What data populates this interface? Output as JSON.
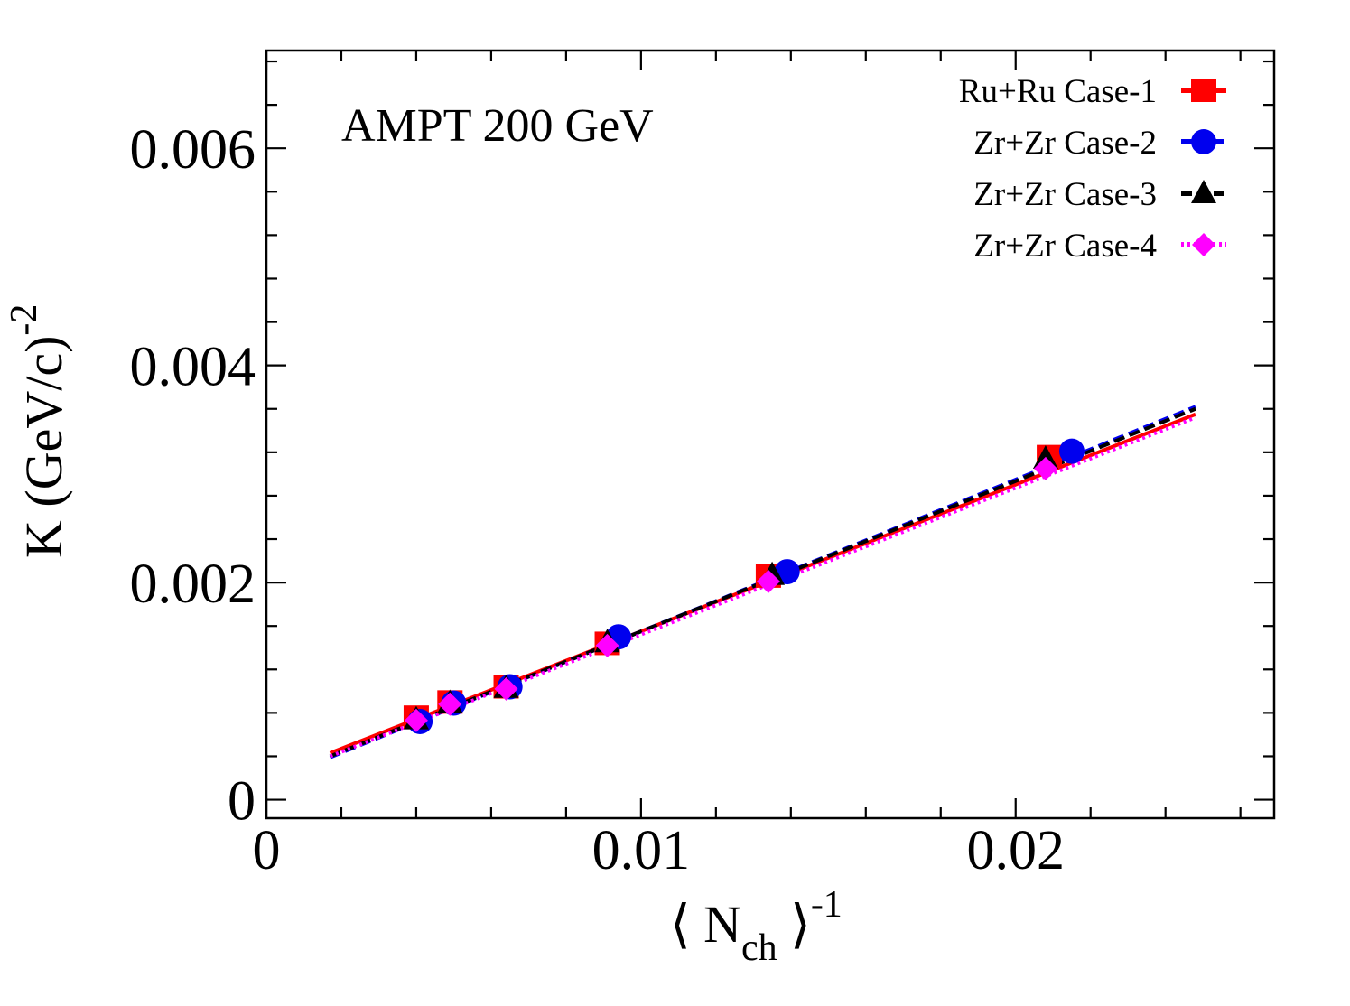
{
  "chart_data": {
    "type": "scatter",
    "annotation": "AMPT 200 GeV",
    "xlim": [
      0,
      0.0269
    ],
    "ylim": [
      -0.00017,
      0.0069
    ],
    "x_ticks": [
      0,
      0.01,
      0.02
    ],
    "x_tick_labels": [
      "0",
      "0.01",
      "0.02"
    ],
    "y_ticks": [
      0,
      0.002,
      0.004,
      0.006
    ],
    "y_tick_labels": [
      "0",
      "0.002",
      "0.004",
      "0.006"
    ],
    "xlabel": {
      "left": "⟨ N",
      "sub": "ch",
      "right": " ⟩",
      "sup": "-1"
    },
    "ylabel": {
      "main": "K (GeV/c)",
      "sup": "-2"
    },
    "grid": false,
    "legend_position": "top-right",
    "series": [
      {
        "name": "Ru+Ru Case-1",
        "color": "#ff0000",
        "marker": "square",
        "line_style": "solid",
        "points": [
          [
            0.004,
            0.00076
          ],
          [
            0.0049,
            0.0009
          ],
          [
            0.0064,
            0.00104
          ],
          [
            0.0091,
            0.00144
          ],
          [
            0.0134,
            0.00206
          ],
          [
            0.0209,
            0.00316
          ]
        ],
        "fit": {
          "x": [
            0.0017,
            0.0248
          ],
          "y": [
            0.00043,
            0.00355
          ]
        }
      },
      {
        "name": "Zr+Zr Case-2",
        "color": "#0000ee",
        "marker": "circle",
        "line_style": "dashed",
        "points": [
          [
            0.0041,
            0.00072
          ],
          [
            0.005,
            0.00089
          ],
          [
            0.0065,
            0.00104
          ],
          [
            0.0094,
            0.0015
          ],
          [
            0.0139,
            0.0021
          ],
          [
            0.0215,
            0.00321
          ]
        ],
        "fit": {
          "x": [
            0.0017,
            0.0248
          ],
          "y": [
            0.00039,
            0.00362
          ]
        }
      },
      {
        "name": "Zr+Zr Case-3",
        "color": "#000000",
        "marker": "triangle",
        "line_style": "dashed",
        "points": [
          [
            0.004,
            0.00074
          ],
          [
            0.0049,
            0.00089
          ],
          [
            0.0064,
            0.00103
          ],
          [
            0.0091,
            0.00145
          ],
          [
            0.0135,
            0.00207
          ],
          [
            0.0208,
            0.00314
          ]
        ],
        "fit": {
          "x": [
            0.0017,
            0.0248
          ],
          "y": [
            0.0004,
            0.0036
          ]
        }
      },
      {
        "name": "Zr+Zr Case-4",
        "color": "#ff00ff",
        "marker": "diamond",
        "line_style": "dotted",
        "points": [
          [
            0.004,
            0.00073
          ],
          [
            0.0049,
            0.00088
          ],
          [
            0.0064,
            0.00102
          ],
          [
            0.0091,
            0.00142
          ],
          [
            0.0134,
            0.00201
          ],
          [
            0.0208,
            0.00305
          ]
        ],
        "fit": {
          "x": [
            0.0017,
            0.0248
          ],
          "y": [
            0.0004,
            0.00352
          ]
        }
      }
    ]
  }
}
